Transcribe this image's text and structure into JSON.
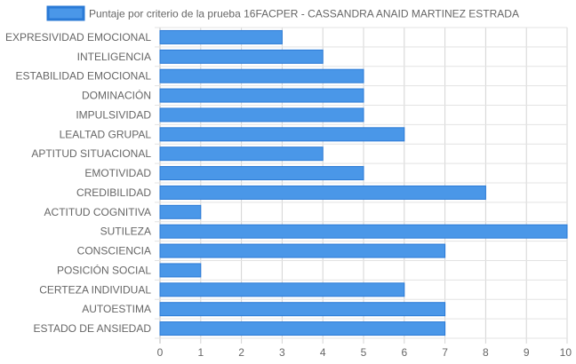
{
  "chart_data": {
    "type": "bar",
    "orientation": "horizontal",
    "categories": [
      "EXPRESIVIDAD EMOCIONAL",
      "INTELIGENCIA",
      "ESTABILIDAD EMOCIONAL",
      "DOMINACIÓN",
      "IMPULSIVIDAD",
      "LEALTAD GRUPAL",
      "APTITUD SITUACIONAL",
      "EMOTIVIDAD",
      "CREDIBILIDAD",
      "ACTITUD COGNITIVA",
      "SUTILEZA",
      "CONSCIENCIA",
      "POSICIÓN SOCIAL",
      "CERTEZA INDIVIDUAL",
      "AUTOESTIMA",
      "ESTADO DE ANSIEDAD"
    ],
    "series": [
      {
        "name": "Puntaje por criterio de la prueba 16FACPER - CASSANDRA ANAID MARTINEZ ESTRADA",
        "values": [
          3,
          4,
          5,
          5,
          5,
          6,
          4,
          5,
          8,
          1,
          10,
          7,
          1,
          6,
          7,
          7
        ],
        "color": "#4a97e8",
        "border_color": "#2a7ad6"
      }
    ],
    "xlim": [
      0,
      10
    ],
    "x_ticks": [
      "0",
      "1",
      "2",
      "3",
      "4",
      "5",
      "6",
      "7",
      "8",
      "9",
      "10"
    ],
    "grid": true,
    "legend": "top-center"
  }
}
